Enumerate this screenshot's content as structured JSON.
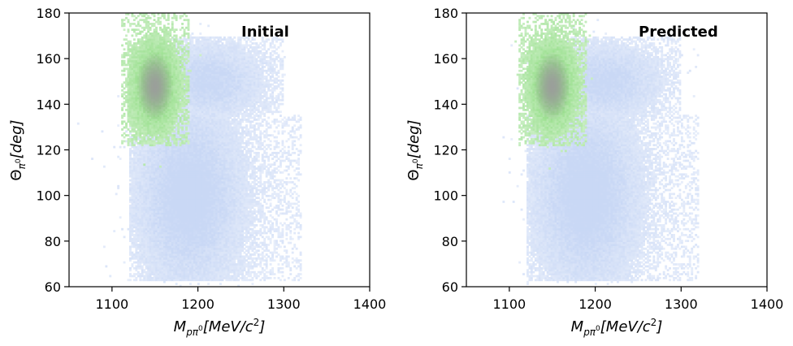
{
  "chart_data": [
    {
      "type": "heatmap",
      "title": "Initial",
      "xlabel": "M_{pπ⁰}[MeV/c²]",
      "ylabel": "Θ_{π⁰}[deg]",
      "xlim": [
        1050,
        1400
      ],
      "ylim": [
        60,
        180
      ],
      "xticks": [
        1100,
        1200,
        1300,
        1400
      ],
      "yticks": [
        60,
        80,
        100,
        120,
        140,
        160,
        180
      ],
      "grid": false,
      "series": [
        {
          "color": "#c9d8f5",
          "clusters": [
            {
              "center": [
                1190,
                100
              ],
              "spread": [
                38,
                25
              ],
              "x_range": [
                1120,
                1320
              ],
              "y_range": [
                63,
                135
              ],
              "weight": 1.0
            },
            {
              "center": [
                1210,
                150
              ],
              "spread": [
                40,
                10
              ],
              "x_range": [
                1165,
                1300
              ],
              "y_range": [
                130,
                170
              ],
              "weight": 0.8
            }
          ]
        },
        {
          "color": "#8fdc82",
          "peak_color": "#9a9f9a",
          "clusters": [
            {
              "center": [
                1150,
                148
              ],
              "spread": [
                17,
                12
              ],
              "x_range": [
                1110,
                1190
              ],
              "y_range": [
                122,
                180
              ],
              "weight": 1.0
            }
          ]
        }
      ]
    },
    {
      "type": "heatmap",
      "title": "Predicted",
      "xlabel": "M_{pπ⁰}[MeV/c²]",
      "ylabel": "Θ_{π⁰}[deg]",
      "xlim": [
        1050,
        1400
      ],
      "ylim": [
        60,
        180
      ],
      "xticks": [
        1100,
        1200,
        1300,
        1400
      ],
      "yticks": [
        60,
        80,
        100,
        120,
        140,
        160,
        180
      ],
      "grid": false,
      "series": [
        {
          "color": "#c9d8f5",
          "clusters": [
            {
              "center": [
                1190,
                100
              ],
              "spread": [
                38,
                25
              ],
              "x_range": [
                1120,
                1320
              ],
              "y_range": [
                63,
                135
              ],
              "weight": 1.0
            },
            {
              "center": [
                1210,
                150
              ],
              "spread": [
                40,
                10
              ],
              "x_range": [
                1165,
                1300
              ],
              "y_range": [
                130,
                170
              ],
              "weight": 0.8
            }
          ]
        },
        {
          "color": "#8fdc82",
          "peak_color": "#9a9f9a",
          "clusters": [
            {
              "center": [
                1150,
                148
              ],
              "spread": [
                17,
                12
              ],
              "x_range": [
                1110,
                1190
              ],
              "y_range": [
                122,
                180
              ],
              "weight": 1.0
            }
          ]
        }
      ]
    }
  ]
}
